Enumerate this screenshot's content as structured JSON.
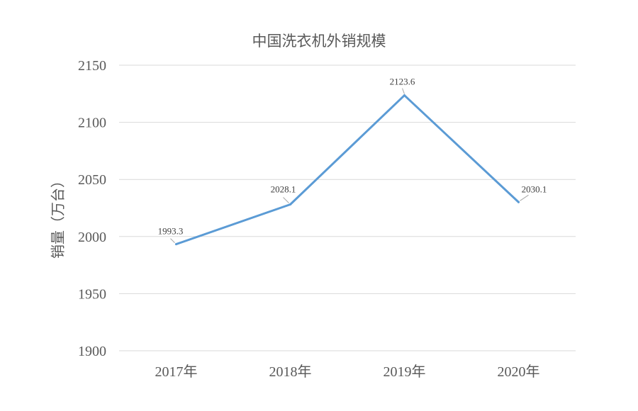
{
  "chart_data": {
    "type": "line",
    "title": "中国洗衣机外销规模",
    "xlabel": "",
    "ylabel": "销量（万台）",
    "categories": [
      "2017年",
      "2018年",
      "2019年",
      "2020年"
    ],
    "series": [
      {
        "values": [
          1993.3,
          2028.1,
          2123.6,
          2030.1
        ]
      }
    ],
    "data_labels": [
      "1993.3",
      "2028.1",
      "2123.6",
      "2030.1"
    ],
    "ylim": [
      1900,
      2150
    ],
    "yticks": [
      1900,
      1950,
      2000,
      2050,
      2100,
      2150
    ],
    "grid": true,
    "legend": "none",
    "colors": {
      "line": "#5b9bd5",
      "grid": "#d9d9d9",
      "text": "#595959"
    }
  }
}
